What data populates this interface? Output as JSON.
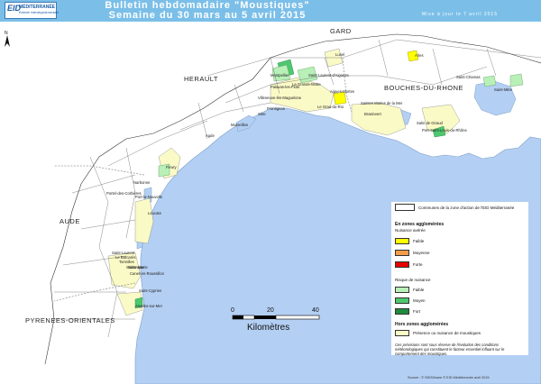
{
  "header": {
    "logo_mark": "EID",
    "logo_name": "MÉDITERRANÉE",
    "logo_sub": "Entente interdépartementale",
    "title_line1": "Bulletin hebdomadaire \"Moustiques\"",
    "title_line2": "Semaine du 30 mars  au 5 avril 2015",
    "update": "Mise à jour le 7 avril 2015"
  },
  "map": {
    "regions": [
      "GARD",
      "HERAULT",
      "BOUCHES-DU-RHONE",
      "AUDE",
      "PYRENEES-ORIENTALES"
    ],
    "towns": [
      "Arles",
      "Saint-Chamas",
      "Saint-Mitre",
      "Lunel",
      "Saint-Laurent-d'Aigouze",
      "Aigues-Mortes",
      "Montpellier",
      "Palavas-les-Flots",
      "La Grande-Motte",
      "Villeneuve-lès-Maguelone",
      "Frontignan",
      "Sète",
      "Marseillan",
      "Agde",
      "Le Grau-du-Roi",
      "Saintes Maries de la Mer",
      "Brasinvert",
      "Salin de Giraud",
      "Port-Saint-Louis-du-Rhône",
      "Fleury",
      "Narbonne",
      "Port-la-Nouvelle",
      "Portel-des-Corbières",
      "Leucate",
      "Saint-Laurent",
      "Le Barcarès",
      "Torreilles",
      "Sainte-Marie",
      "Canet-en-Roussillon",
      "Saint-Cyprien",
      "Argelès-sur-Mer",
      "Salanque"
    ],
    "compass_label": "N",
    "colors": {
      "sea": "#b3cff3",
      "land": "#ffffff",
      "faible": "#ffff00",
      "moyenne": "#f39c4b",
      "forte": "#e60000",
      "risque_faible": "#b8f0b8",
      "risque_moyen": "#4dc86e",
      "risque_fort": "#1f8b3e",
      "presence": "#fafac7"
    }
  },
  "scale": {
    "labels": [
      "0",
      "20",
      "40"
    ],
    "unit": "Kilomètres"
  },
  "legend": {
    "communes": "Communes de la zone d'action de l'EID Méditerranée",
    "agglo_title": "En zones agglomérées",
    "nuisance_title": "Nuisance avérée",
    "faible": "Faible",
    "moyenne": "Moyenne",
    "forte": "Forte",
    "risque_title": "Risque de nuisance",
    "r_faible": "Faible",
    "r_moyen": "Moyen",
    "r_fort": "Fort",
    "hors_title": "Hors zones agglomérées",
    "presence": "Présence ou nuisance de moustiques",
    "note": "Ces prévisions sont sous réserve de l'évolution des conditions météorologiques qui constituent le facteur essentiel influant sur le comportement des moustiques."
  },
  "source": "Source : © SDIS/Insee    © EID Méditerranée    avril 2015"
}
